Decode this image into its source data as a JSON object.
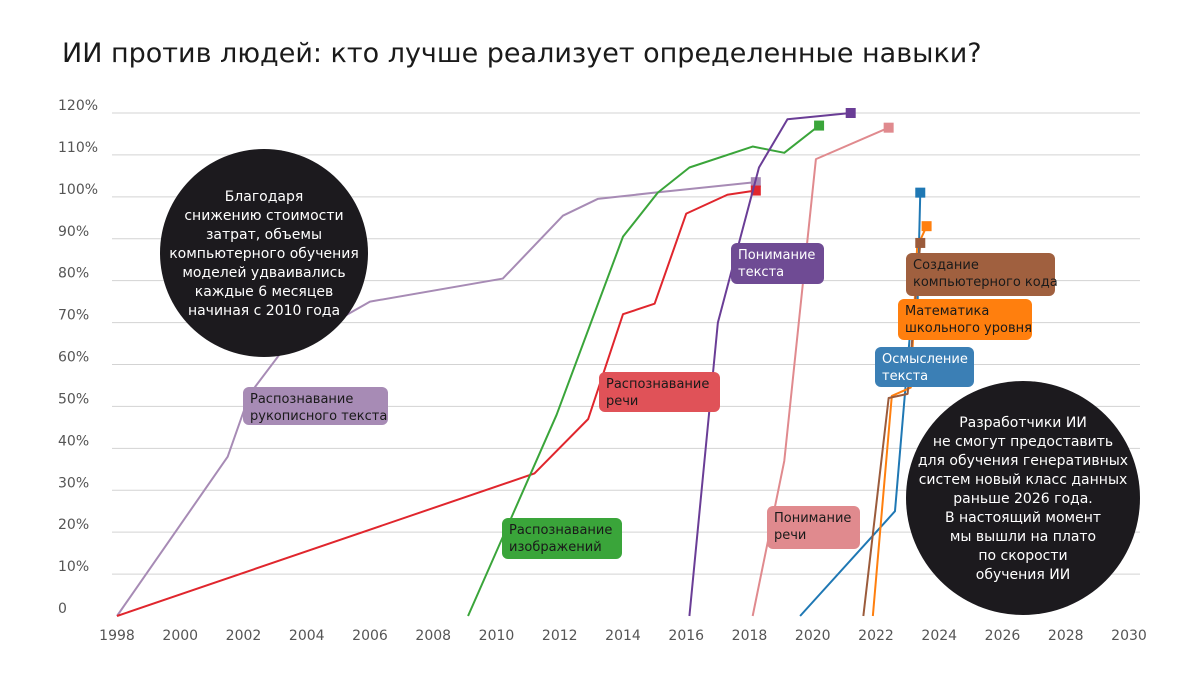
{
  "chart_data": {
    "type": "line",
    "title": "ИИ против людей: кто лучше реализует определенные навыки?",
    "xlabel": "",
    "ylabel": "",
    "xlim": [
      1998,
      2030
    ],
    "ylim": [
      0,
      120
    ],
    "x_ticks": [
      "1998",
      "2000",
      "2002",
      "2004",
      "2006",
      "2008",
      "2010",
      "2012",
      "2014",
      "2016",
      "2018",
      "2020",
      "2022",
      "2024",
      "2026",
      "2028",
      "2030"
    ],
    "y_ticks": [
      "0",
      "10%",
      "20%",
      "30%",
      "40%",
      "50%",
      "60%",
      "70%",
      "80%",
      "90%",
      "100%",
      "110%",
      "120%"
    ],
    "grid": true,
    "series": [
      {
        "name": "Распознавание рукописного текста",
        "label_lines": [
          "Распознавание",
          "рукописного текста"
        ],
        "color": "#a78bb5",
        "label_color": "#a78bb5",
        "text_color": "#1a1a1a",
        "points": [
          [
            1998,
            0
          ],
          [
            2001.5,
            38
          ],
          [
            2002.2,
            53
          ],
          [
            2003.2,
            63
          ],
          [
            2006,
            75
          ],
          [
            2010.2,
            80.5
          ],
          [
            2012.1,
            95.5
          ],
          [
            2013.2,
            99.5
          ],
          [
            2015,
            101
          ],
          [
            2018.2,
            103.5
          ]
        ]
      },
      {
        "name": "Распознавание речи",
        "label_lines": [
          "Распознавание",
          "речи"
        ],
        "color": "#e0262d",
        "label_color": "#e05258",
        "text_color": "#1a1a1a",
        "points": [
          [
            1998,
            0
          ],
          [
            2011.2,
            34
          ],
          [
            2012.9,
            47
          ],
          [
            2014,
            72
          ],
          [
            2015,
            74.5
          ],
          [
            2016,
            96
          ],
          [
            2017.3,
            100.5
          ],
          [
            2018.2,
            101.5
          ]
        ]
      },
      {
        "name": "Распознавание изображений",
        "label_lines": [
          "Распознавание",
          "изображений"
        ],
        "color": "#3aa53a",
        "label_color": "#3aa53a",
        "text_color": "#1a1a1a",
        "points": [
          [
            2009.1,
            0
          ],
          [
            2011.9,
            48
          ],
          [
            2014,
            90.5
          ],
          [
            2015.1,
            101
          ],
          [
            2016.1,
            107
          ],
          [
            2018.1,
            112
          ],
          [
            2019.1,
            110.5
          ],
          [
            2020.2,
            117
          ]
        ]
      },
      {
        "name": "Понимание текста",
        "label_lines": [
          "Понимание",
          "текста"
        ],
        "color": "#6a3d96",
        "label_color": "#6f4b94",
        "text_color": "#ffffff",
        "points": [
          [
            2016.1,
            0
          ],
          [
            2017,
            70
          ],
          [
            2018.3,
            107
          ],
          [
            2019.2,
            118.5
          ],
          [
            2021.2,
            120
          ]
        ]
      },
      {
        "name": "Понимание речи",
        "label_lines": [
          "Понимание",
          "речи"
        ],
        "color": "#e08a8e",
        "label_color": "#e08a8e",
        "text_color": "#1a1a1a",
        "points": [
          [
            2018.1,
            0
          ],
          [
            2019.1,
            37
          ],
          [
            2020.1,
            109
          ],
          [
            2022.4,
            116.5
          ]
        ]
      },
      {
        "name": "Осмысление текста",
        "label_lines": [
          "Осмысление",
          "текста"
        ],
        "color": "#1f78b4",
        "label_color": "#3b7fb5",
        "text_color": "#ffffff",
        "points": [
          [
            2019.6,
            0
          ],
          [
            2022.6,
            25
          ],
          [
            2023.1,
            69.5
          ],
          [
            2023.3,
            70
          ],
          [
            2023.4,
            101
          ]
        ]
      },
      {
        "name": "Математика школьного уровня",
        "label_lines": [
          "Математика",
          "школьного уровня"
        ],
        "color": "#ff7f0e",
        "label_color": "#ff7f0e",
        "text_color": "#1a1a1a",
        "points": [
          [
            2021.9,
            0
          ],
          [
            2022.5,
            52.5
          ],
          [
            2023.1,
            54.5
          ],
          [
            2023.3,
            88
          ],
          [
            2023.6,
            93
          ]
        ]
      },
      {
        "name": "Создание компьютерного кода",
        "label_lines": [
          "Создание",
          "компьютерного кода"
        ],
        "color": "#9b5b3b",
        "label_color": "#a0603f",
        "text_color": "#1a1a1a",
        "points": [
          [
            2021.6,
            0
          ],
          [
            2022.4,
            52
          ],
          [
            2023,
            53
          ],
          [
            2023.4,
            89
          ]
        ]
      }
    ],
    "annotations": [
      {
        "lines": [
          "Благодаря",
          "снижению стоимости",
          "затрат, объемы",
          "компьютерного обучения",
          "моделей удваивались",
          "каждые 6 месяцев",
          "начиная с 2010 года"
        ]
      },
      {
        "lines": [
          "Разработчики ИИ",
          "не смогут предоставить",
          "для обучения генеративных",
          "систем новый класс данных",
          "раньше 2026 года.",
          "В настоящий момент",
          "мы вышли на плато",
          "по скорости",
          "обучения ИИ"
        ]
      }
    ]
  },
  "colors": {
    "background": "#ffffff",
    "grid": "#d3d3d3",
    "bubble": "#1c1a1e",
    "text": "#1a1a1a"
  }
}
